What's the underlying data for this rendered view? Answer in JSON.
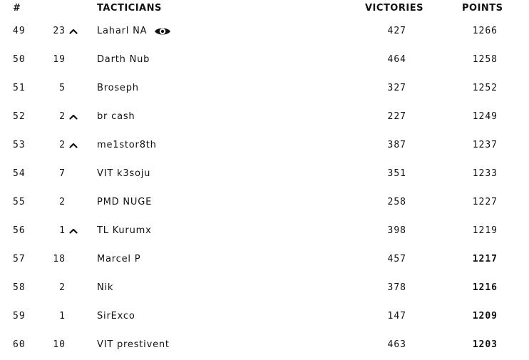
{
  "columns": {
    "rank": "#",
    "tacticians": "TACTICIANS",
    "victories": "VICTORIES",
    "points": "POINTS"
  },
  "icons": {
    "up_arrow": "chevron-up-icon",
    "watch": "eye-icon"
  },
  "rows": [
    {
      "rank": "49",
      "change": "23",
      "up": true,
      "name": "Laharl NA",
      "watched": true,
      "victories": "427",
      "points": "1266",
      "bold": false
    },
    {
      "rank": "50",
      "change": "19",
      "up": false,
      "name": "Darth Nub",
      "watched": false,
      "victories": "464",
      "points": "1258",
      "bold": false
    },
    {
      "rank": "51",
      "change": "5",
      "up": false,
      "name": "Broseph",
      "watched": false,
      "victories": "327",
      "points": "1252",
      "bold": false
    },
    {
      "rank": "52",
      "change": "2",
      "up": true,
      "name": "br cash",
      "watched": false,
      "victories": "227",
      "points": "1249",
      "bold": false
    },
    {
      "rank": "53",
      "change": "2",
      "up": true,
      "name": "me1stor8th",
      "watched": false,
      "victories": "387",
      "points": "1237",
      "bold": false
    },
    {
      "rank": "54",
      "change": "7",
      "up": false,
      "name": "VIT k3soju",
      "watched": false,
      "victories": "351",
      "points": "1233",
      "bold": false
    },
    {
      "rank": "55",
      "change": "2",
      "up": false,
      "name": "PMD NUGE",
      "watched": false,
      "victories": "258",
      "points": "1227",
      "bold": false
    },
    {
      "rank": "56",
      "change": "1",
      "up": true,
      "name": "TL Kurumx",
      "watched": false,
      "victories": "398",
      "points": "1219",
      "bold": false
    },
    {
      "rank": "57",
      "change": "18",
      "up": false,
      "name": "Marcel P",
      "watched": false,
      "victories": "457",
      "points": "1217",
      "bold": true
    },
    {
      "rank": "58",
      "change": "2",
      "up": false,
      "name": "Nik",
      "watched": false,
      "victories": "378",
      "points": "1216",
      "bold": true
    },
    {
      "rank": "59",
      "change": "1",
      "up": false,
      "name": "SirExco",
      "watched": false,
      "victories": "147",
      "points": "1209",
      "bold": true
    },
    {
      "rank": "60",
      "change": "10",
      "up": false,
      "name": "VIT prestivent",
      "watched": false,
      "victories": "463",
      "points": "1203",
      "bold": true
    }
  ]
}
